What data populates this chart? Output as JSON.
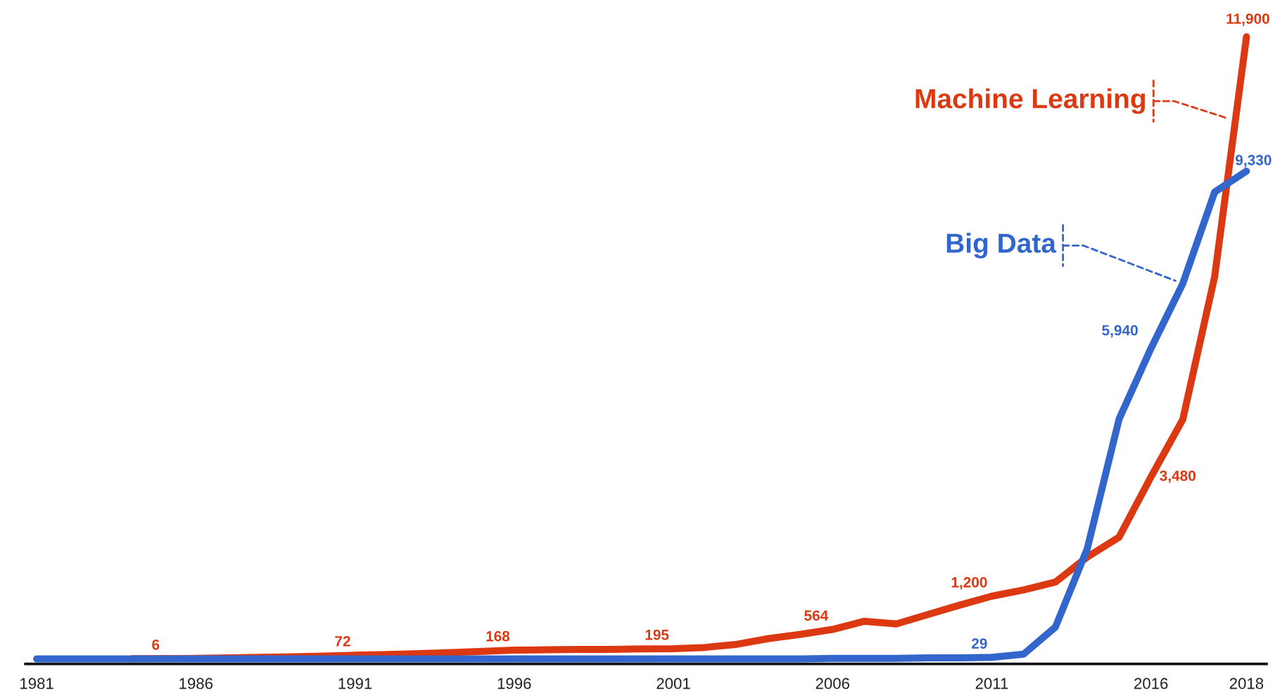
{
  "chart_data": {
    "type": "line",
    "categories": [
      "1981",
      null,
      null,
      null,
      null,
      "1986",
      null,
      null,
      null,
      null,
      "1991",
      null,
      null,
      null,
      null,
      "1996",
      null,
      null,
      null,
      null,
      "2001",
      null,
      null,
      null,
      null,
      "2006",
      null,
      null,
      null,
      null,
      "2011",
      null,
      null,
      null,
      null,
      "2016",
      null,
      null,
      "2018"
    ],
    "series": [
      {
        "name": "Machine Learning",
        "color": "#dc3912",
        "values": [
          null,
          null,
          null,
          4,
          6,
          10,
          20,
          30,
          40,
          55,
          72,
          85,
          100,
          120,
          145,
          168,
          175,
          180,
          183,
          190,
          195,
          220,
          280,
          390,
          470,
          564,
          720,
          670,
          850,
          1030,
          1200,
          1320,
          1470,
          1950,
          2330,
          3480,
          4580,
          7310,
          11900
        ],
        "value_labels": [
          null,
          null,
          null,
          null,
          "6",
          null,
          null,
          null,
          null,
          null,
          "72",
          null,
          null,
          null,
          null,
          "168",
          null,
          null,
          null,
          null,
          "195",
          null,
          null,
          null,
          null,
          "564",
          null,
          null,
          null,
          null,
          "1,200",
          null,
          null,
          null,
          null,
          "3,480",
          null,
          null,
          "11,900"
        ]
      },
      {
        "name": "Big Data",
        "color": "#3366cc",
        "values": [
          0,
          0,
          0,
          0,
          0,
          0,
          0,
          0,
          0,
          0,
          0,
          0,
          0,
          0,
          0,
          0,
          0,
          0,
          0,
          0,
          0,
          0,
          0,
          0,
          0,
          10,
          10,
          10,
          20,
          20,
          29,
          90,
          610,
          2110,
          4590,
          5940,
          7180,
          8930,
          9330
        ],
        "value_labels": [
          null,
          null,
          null,
          null,
          null,
          null,
          null,
          null,
          null,
          null,
          null,
          null,
          null,
          null,
          null,
          null,
          null,
          null,
          null,
          null,
          null,
          null,
          null,
          null,
          null,
          null,
          null,
          null,
          null,
          null,
          "29",
          null,
          null,
          null,
          null,
          "5,940",
          null,
          null,
          "9,330"
        ]
      }
    ],
    "tick_labels": "x",
    "legend": "top right"
  }
}
